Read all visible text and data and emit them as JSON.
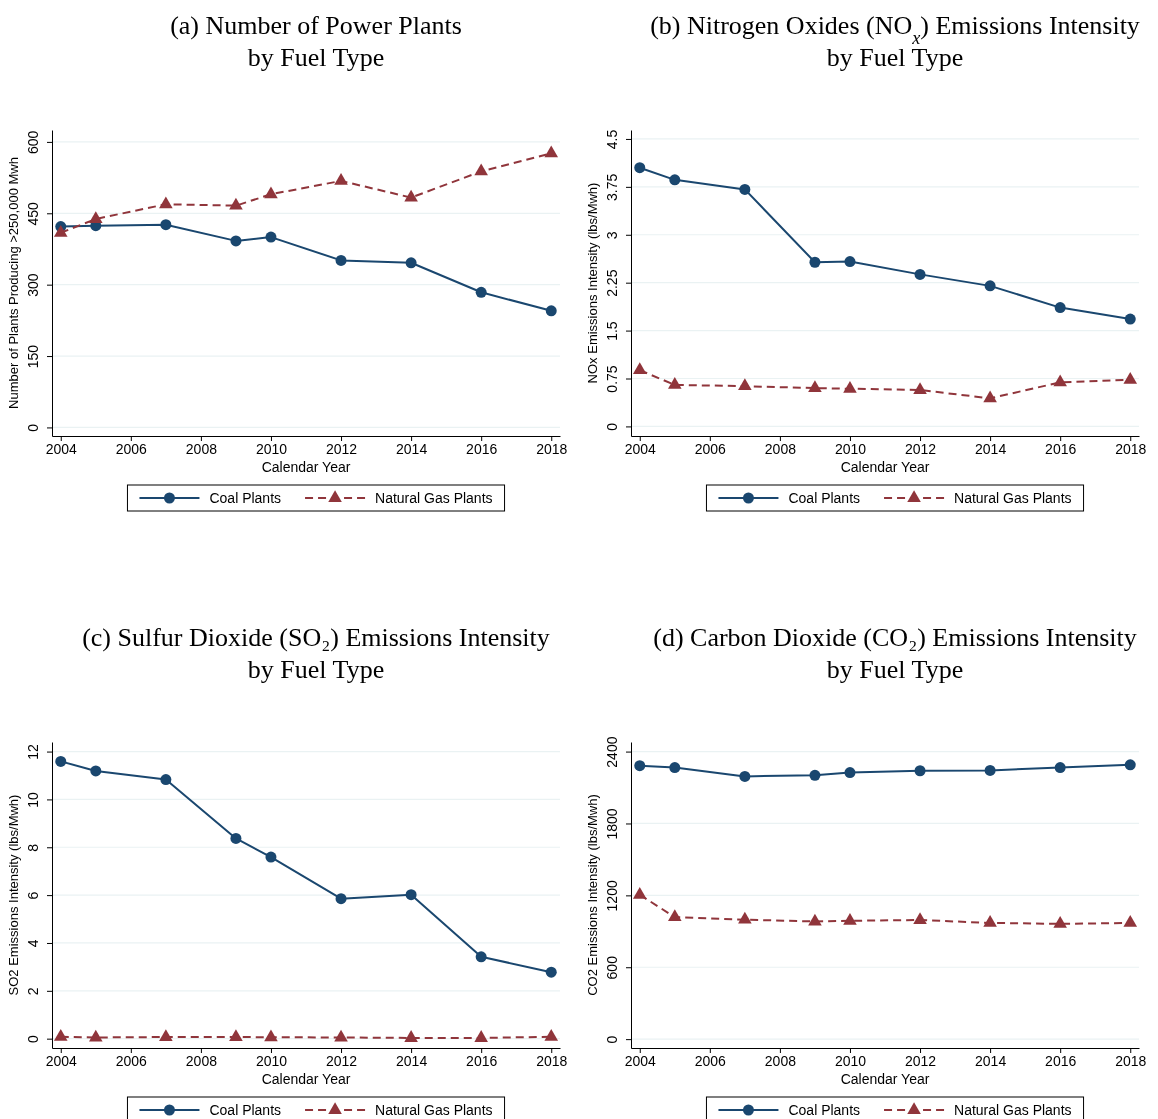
{
  "chart_data": [
    {
      "type": "line",
      "title": "(a) Number of Power Plants\nby Fuel Type",
      "xlabel": "Calendar Year",
      "ylabel": "Number of Plants Producing >250,000 Mwh",
      "x": [
        2004,
        2005,
        2007,
        2009,
        2010,
        2012,
        2014,
        2016,
        2018
      ],
      "xlim": [
        2003.75,
        2018.25
      ],
      "xticks": [
        2004,
        2006,
        2008,
        2010,
        2012,
        2014,
        2016,
        2018
      ],
      "ylim": [
        -18,
        625
      ],
      "yticks": [
        0,
        150,
        300,
        450,
        600
      ],
      "grid": "y",
      "legend": "bottom",
      "series": [
        {
          "name": "Coal Plants",
          "color": "#1a476f",
          "marker": "circle",
          "line_style": "solid",
          "values": [
            422,
            424,
            426,
            392,
            400,
            351,
            346,
            284,
            245
          ]
        },
        {
          "name": "Natural Gas Plants",
          "color": "#90353b",
          "marker": "triangle",
          "line_style": "dashed",
          "values": [
            409,
            438,
            469,
            466,
            490,
            518,
            483,
            538,
            576
          ]
        }
      ]
    },
    {
      "type": "line",
      "title": "(b) Nitrogen Oxides (NO$_{x}$) Emissions Intensity\nby Fuel Type",
      "xlabel": "Calendar Year",
      "ylabel": "NOx Emissions Intensity (lbs/Mwh)",
      "x": [
        2004,
        2005,
        2007,
        2009,
        2010,
        2012,
        2014,
        2016,
        2018
      ],
      "xlim": [
        2003.75,
        2018.25
      ],
      "xticks": [
        2004,
        2006,
        2008,
        2010,
        2012,
        2014,
        2016,
        2018
      ],
      "ylim": [
        -0.15,
        4.64
      ],
      "yticks": [
        0,
        0.75,
        1.5,
        2.25,
        3,
        3.75,
        4.5
      ],
      "grid": "y",
      "legend": "bottom",
      "series": [
        {
          "name": "Coal Plants",
          "color": "#1a476f",
          "marker": "circle",
          "line_style": "solid",
          "values": [
            4.05,
            3.86,
            3.71,
            2.57,
            2.58,
            2.38,
            2.2,
            1.86,
            1.68
          ]
        },
        {
          "name": "Natural Gas Plants",
          "color": "#90353b",
          "marker": "triangle",
          "line_style": "dashed",
          "values": [
            0.88,
            0.65,
            0.63,
            0.6,
            0.59,
            0.57,
            0.44,
            0.69,
            0.73
          ]
        }
      ]
    },
    {
      "type": "line",
      "title": "(c) Sulfur Dioxide (SO₂) Emissions Intensity\nby Fuel Type",
      "xlabel": "Calendar Year",
      "ylabel": "SO2 Emissions Intensity (lbs/Mwh)",
      "x": [
        2004,
        2005,
        2007,
        2009,
        2010,
        2012,
        2014,
        2016,
        2018
      ],
      "xlim": [
        2003.75,
        2018.25
      ],
      "xticks": [
        2004,
        2006,
        2008,
        2010,
        2012,
        2014,
        2016,
        2018
      ],
      "ylim": [
        -0.39,
        12.4
      ],
      "yticks": [
        0,
        2,
        4,
        6,
        8,
        10,
        12
      ],
      "grid": "y",
      "legend": "bottom",
      "series": [
        {
          "name": "Coal Plants",
          "color": "#1a476f",
          "marker": "circle",
          "line_style": "solid",
          "values": [
            11.59,
            11.19,
            10.83,
            8.37,
            7.59,
            5.85,
            6.02,
            3.42,
            2.78
          ]
        },
        {
          "name": "Natural Gas Plants",
          "color": "#90353b",
          "marker": "triangle",
          "line_style": "dashed",
          "values": [
            0.08,
            0.05,
            0.07,
            0.07,
            0.06,
            0.05,
            0.03,
            0.03,
            0.08
          ]
        }
      ]
    },
    {
      "type": "line",
      "title": "(d) Carbon Dioxide (CO₂) Emissions Intensity\nby Fuel Type",
      "xlabel": "Calendar Year",
      "ylabel": "CO2 Emissions Intensity (lbs/Mwh)",
      "x": [
        2004,
        2005,
        2007,
        2009,
        2010,
        2012,
        2014,
        2016,
        2018
      ],
      "xlim": [
        2003.75,
        2018.25
      ],
      "xticks": [
        2004,
        2006,
        2008,
        2010,
        2012,
        2014,
        2016,
        2018
      ],
      "ylim": [
        -74,
        2480
      ],
      "yticks": [
        0,
        600,
        1200,
        1800,
        2400
      ],
      "grid": "y",
      "legend": "bottom",
      "series": [
        {
          "name": "Coal Plants",
          "color": "#1a476f",
          "marker": "circle",
          "line_style": "solid",
          "values": [
            2282,
            2267,
            2193,
            2202,
            2225,
            2240,
            2243,
            2267,
            2290
          ]
        },
        {
          "name": "Natural Gas Plants",
          "color": "#90353b",
          "marker": "triangle",
          "line_style": "dashed",
          "values": [
            1205,
            1018,
            997,
            982,
            988,
            994,
            970,
            962,
            970
          ]
        }
      ]
    }
  ]
}
